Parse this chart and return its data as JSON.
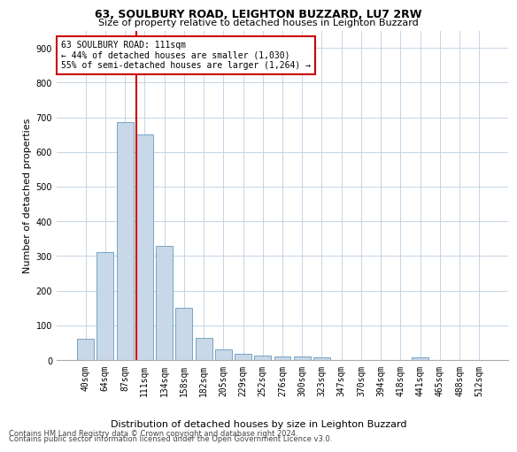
{
  "title": "63, SOULBURY ROAD, LEIGHTON BUZZARD, LU7 2RW",
  "subtitle": "Size of property relative to detached houses in Leighton Buzzard",
  "xlabel": "Distribution of detached houses by size in Leighton Buzzard",
  "ylabel": "Number of detached properties",
  "bin_labels": [
    "40sqm",
    "64sqm",
    "87sqm",
    "111sqm",
    "134sqm",
    "158sqm",
    "182sqm",
    "205sqm",
    "229sqm",
    "252sqm",
    "276sqm",
    "300sqm",
    "323sqm",
    "347sqm",
    "370sqm",
    "394sqm",
    "418sqm",
    "441sqm",
    "465sqm",
    "488sqm",
    "512sqm"
  ],
  "bar_heights": [
    62,
    310,
    685,
    650,
    330,
    150,
    65,
    30,
    18,
    12,
    10,
    10,
    8,
    0,
    0,
    0,
    0,
    8,
    0,
    0,
    0
  ],
  "bar_color": "#c8d8e8",
  "bar_edge_color": "#6699bb",
  "highlight_color": "#cc0000",
  "vline_x_index": 3,
  "annotation_text": "63 SOULBURY ROAD: 111sqm\n← 44% of detached houses are smaller (1,030)\n55% of semi-detached houses are larger (1,264) →",
  "annotation_box_color": "#ffffff",
  "annotation_box_edge_color": "#cc0000",
  "ylim": [
    0,
    950
  ],
  "yticks": [
    0,
    100,
    200,
    300,
    400,
    500,
    600,
    700,
    800,
    900
  ],
  "footer_line1": "Contains HM Land Registry data © Crown copyright and database right 2024.",
  "footer_line2": "Contains public sector information licensed under the Open Government Licence v3.0.",
  "bg_color": "#ffffff",
  "grid_color": "#c5d5e5",
  "title_fontsize": 9,
  "subtitle_fontsize": 8,
  "ylabel_fontsize": 8,
  "tick_fontsize": 7,
  "annotation_fontsize": 7,
  "footer_fontsize": 6
}
